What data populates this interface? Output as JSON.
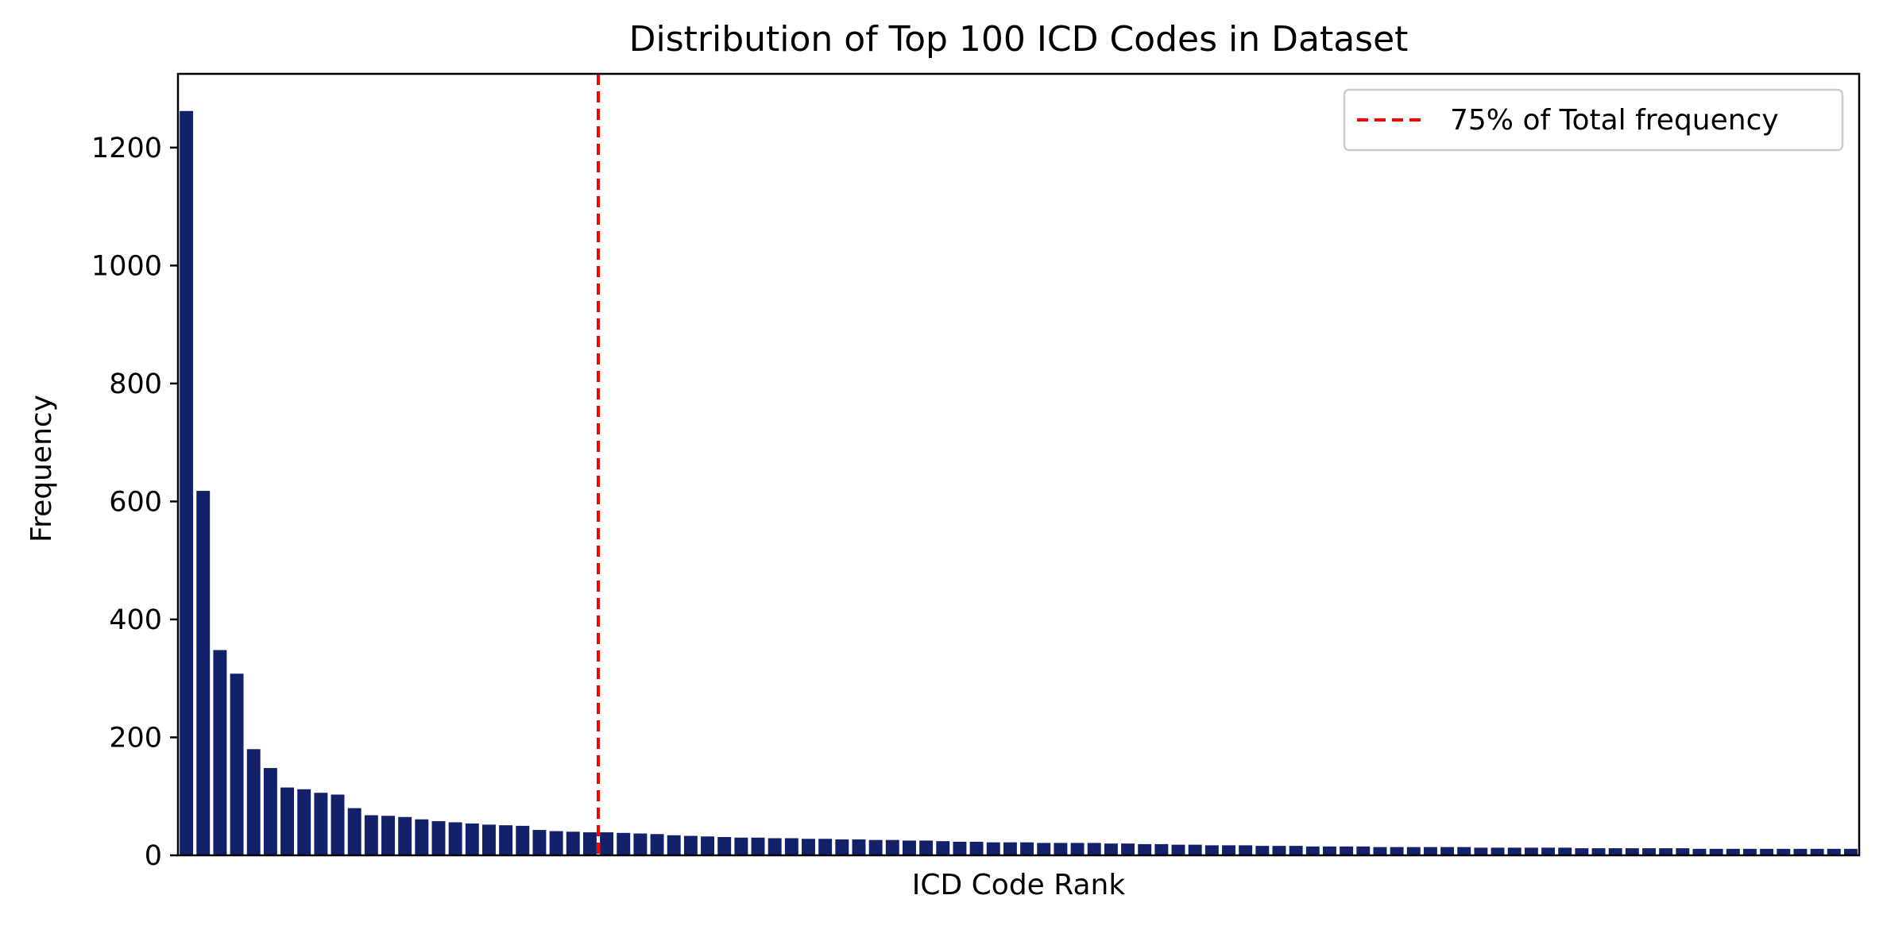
{
  "chart_data": {
    "type": "bar",
    "title": "Distribution of Top 100 ICD Codes in Dataset",
    "xlabel": "ICD Code Rank",
    "ylabel": "Frequency",
    "ylim": [
      0,
      1325
    ],
    "yticks": [
      0,
      200,
      400,
      600,
      800,
      1000,
      1200
    ],
    "x_tick_labels_shown": false,
    "grid": false,
    "legend_position": "top-right",
    "bar_color": "#13216b",
    "values": [
      1262,
      618,
      348,
      308,
      180,
      148,
      115,
      112,
      106,
      103,
      80,
      68,
      67,
      65,
      61,
      58,
      56,
      54,
      52,
      51,
      50,
      43,
      41,
      40,
      39,
      39,
      38,
      37,
      36,
      34,
      33,
      32,
      31,
      30,
      30,
      29,
      29,
      28,
      28,
      27,
      27,
      26,
      26,
      25,
      25,
      24,
      23,
      23,
      22,
      22,
      22,
      21,
      21,
      21,
      21,
      20,
      20,
      19,
      19,
      18,
      18,
      17,
      17,
      17,
      16,
      16,
      16,
      15,
      15,
      15,
      15,
      14,
      14,
      14,
      14,
      14,
      14,
      13,
      13,
      13,
      13,
      13,
      13,
      12,
      12,
      12,
      12,
      12,
      12,
      12,
      11,
      11,
      11,
      11,
      11,
      11,
      11,
      11,
      11,
      11
    ],
    "reference_line": {
      "label": "75% of Total frequency",
      "x_rank": 24.5,
      "color": "#ff0000",
      "style": "dashed"
    }
  }
}
